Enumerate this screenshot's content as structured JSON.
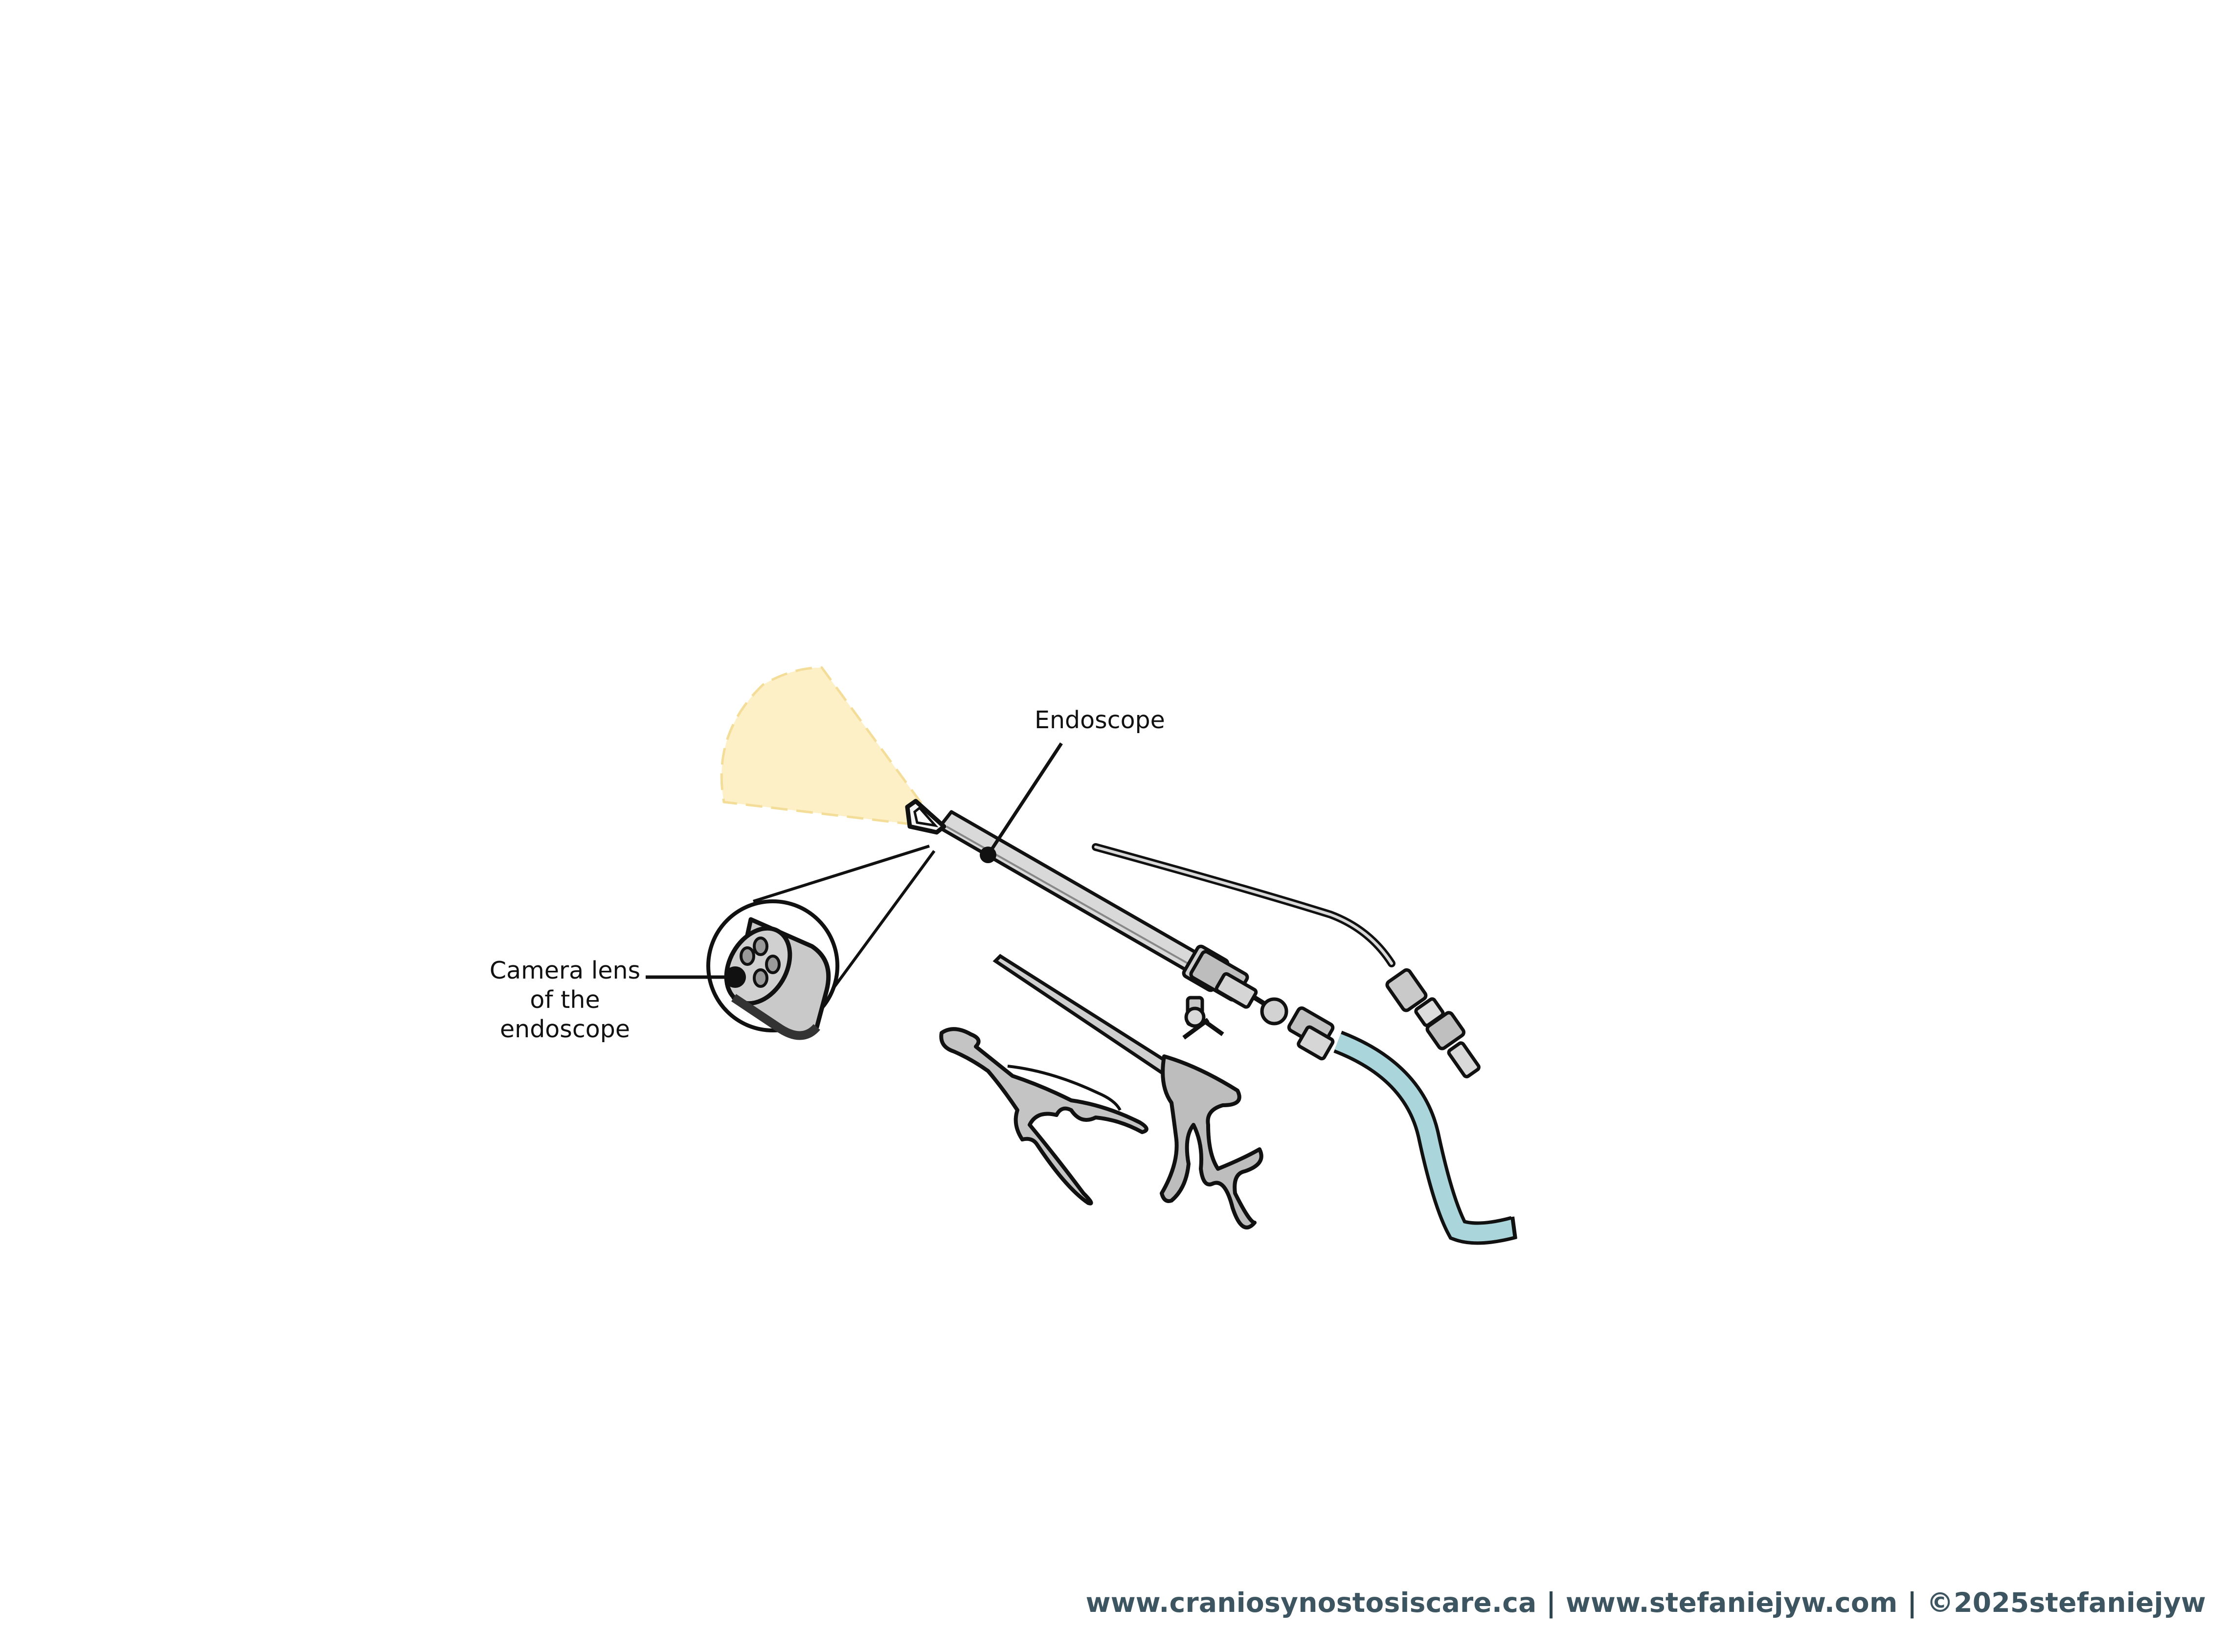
{
  "labels": {
    "endoscope": "Endoscope",
    "camera_lens_line1": "Camera lens",
    "camera_lens_line2": "of the",
    "camera_lens_line3": "endoscope"
  },
  "footer": {
    "site1": "www.craniosynostosiscare.ca",
    "separator": "|",
    "site2": "www.stefaniejyw.com",
    "copyright": "©2025stefaniejyw"
  },
  "colors": {
    "light_cone": "#fdf0c6",
    "tube": "#a9d5db",
    "metal": "#c9c9c9",
    "outline": "#111111",
    "footer_text": "#3d5560"
  },
  "icons": {
    "light_cone": "light-beam-icon",
    "camera_tip": "camera-lens-icon",
    "forceps": "forceps-icon",
    "rongeur": "rongeur-icon",
    "suction": "suction-tube-icon"
  }
}
